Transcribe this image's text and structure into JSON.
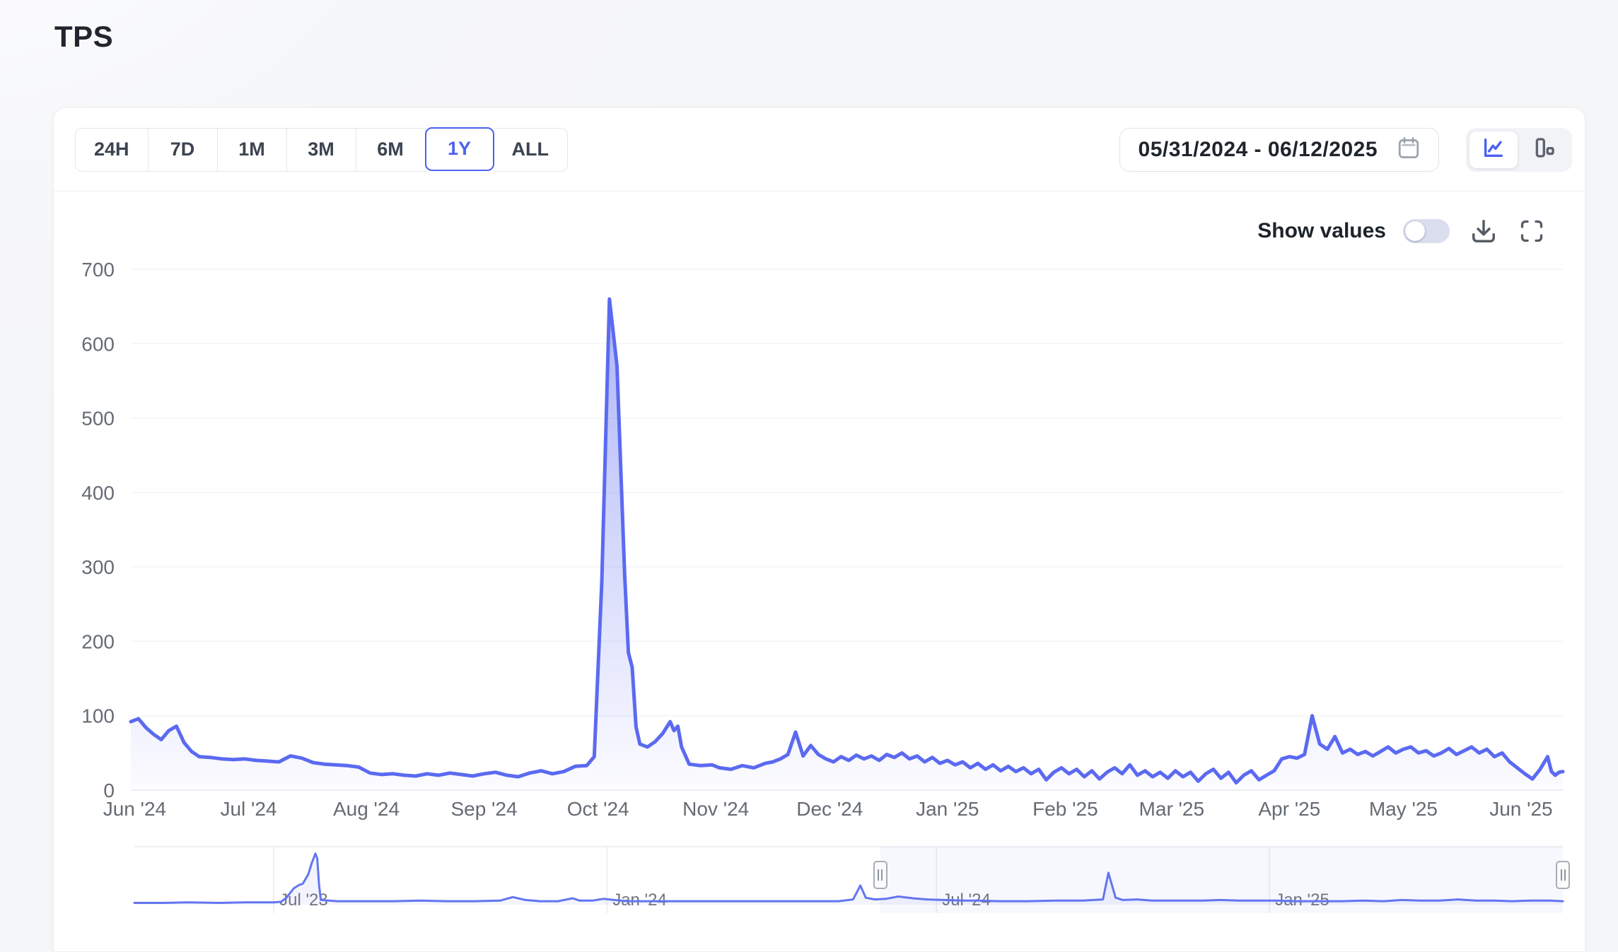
{
  "page": {
    "title": "TPS"
  },
  "toolbar": {
    "ranges": [
      {
        "label": "24H",
        "selected": false
      },
      {
        "label": "7D",
        "selected": false
      },
      {
        "label": "1M",
        "selected": false
      },
      {
        "label": "3M",
        "selected": false
      },
      {
        "label": "6M",
        "selected": false
      },
      {
        "label": "1Y",
        "selected": true
      },
      {
        "label": "ALL",
        "selected": false
      }
    ],
    "date_range": {
      "value": "05/31/2024 - 06/12/2025"
    },
    "chart_type": {
      "selected": "line"
    }
  },
  "chart_header": {
    "show_values_label": "Show values",
    "show_values_on": false
  },
  "colors": {
    "accent": "#4b62f0",
    "line": "#5b6af0",
    "nav_line": "#6375f0",
    "grid": "#f3f4f6",
    "axis": "#e9ebee",
    "area_top": "rgba(91,106,240,0.50)",
    "area_bottom": "rgba(91,106,240,0.02)",
    "nav_fill": "rgba(99,115,240,0.08)",
    "selection_fill": "rgba(93,110,240,0.05)",
    "icon_gray": "#565c66",
    "calendar_gray": "#9aa1ac"
  },
  "chart_data": [
    {
      "type": "area",
      "role": "main",
      "title": "TPS",
      "ylabel": "",
      "xlabel": "",
      "ylim": [
        0,
        700
      ],
      "yticks": [
        0,
        100,
        200,
        300,
        400,
        500,
        600,
        700
      ],
      "grid": "horizontal",
      "legend": "none",
      "xrange": [
        "2024-05-31",
        "2025-06-12"
      ],
      "xticks": [
        {
          "label": "Jun '24",
          "date": "2024-06-01"
        },
        {
          "label": "Jul '24",
          "date": "2024-07-01"
        },
        {
          "label": "Aug '24",
          "date": "2024-08-01"
        },
        {
          "label": "Sep '24",
          "date": "2024-09-01"
        },
        {
          "label": "Oct '24",
          "date": "2024-10-01"
        },
        {
          "label": "Nov '24",
          "date": "2024-11-01"
        },
        {
          "label": "Dec '24",
          "date": "2024-12-01"
        },
        {
          "label": "Jan '25",
          "date": "2025-01-01"
        },
        {
          "label": "Feb '25",
          "date": "2025-02-01"
        },
        {
          "label": "Mar '25",
          "date": "2025-03-01"
        },
        {
          "label": "Apr '25",
          "date": "2025-04-01"
        },
        {
          "label": "May '25",
          "date": "2025-05-01"
        },
        {
          "label": "Jun '25",
          "date": "2025-06-01"
        }
      ],
      "points": [
        [
          "2024-05-31",
          92
        ],
        [
          "2024-06-02",
          96
        ],
        [
          "2024-06-04",
          84
        ],
        [
          "2024-06-06",
          75
        ],
        [
          "2024-06-08",
          68
        ],
        [
          "2024-06-10",
          80
        ],
        [
          "2024-06-12",
          86
        ],
        [
          "2024-06-14",
          64
        ],
        [
          "2024-06-16",
          52
        ],
        [
          "2024-06-18",
          45
        ],
        [
          "2024-06-21",
          44
        ],
        [
          "2024-06-24",
          42
        ],
        [
          "2024-06-27",
          41
        ],
        [
          "2024-06-30",
          42
        ],
        [
          "2024-07-03",
          40
        ],
        [
          "2024-07-06",
          39
        ],
        [
          "2024-07-09",
          38
        ],
        [
          "2024-07-12",
          46
        ],
        [
          "2024-07-15",
          43
        ],
        [
          "2024-07-18",
          37
        ],
        [
          "2024-07-21",
          35
        ],
        [
          "2024-07-24",
          34
        ],
        [
          "2024-07-27",
          33
        ],
        [
          "2024-07-30",
          31
        ],
        [
          "2024-08-02",
          23
        ],
        [
          "2024-08-05",
          21
        ],
        [
          "2024-08-08",
          22
        ],
        [
          "2024-08-11",
          20
        ],
        [
          "2024-08-14",
          19
        ],
        [
          "2024-08-17",
          22
        ],
        [
          "2024-08-20",
          20
        ],
        [
          "2024-08-23",
          23
        ],
        [
          "2024-08-26",
          21
        ],
        [
          "2024-08-29",
          19
        ],
        [
          "2024-09-01",
          22
        ],
        [
          "2024-09-04",
          24
        ],
        [
          "2024-09-07",
          20
        ],
        [
          "2024-09-10",
          18
        ],
        [
          "2024-09-13",
          23
        ],
        [
          "2024-09-16",
          26
        ],
        [
          "2024-09-19",
          22
        ],
        [
          "2024-09-22",
          25
        ],
        [
          "2024-09-25",
          32
        ],
        [
          "2024-09-28",
          33
        ],
        [
          "2024-09-30",
          45
        ],
        [
          "2024-10-02",
          280
        ],
        [
          "2024-10-04",
          660
        ],
        [
          "2024-10-06",
          570
        ],
        [
          "2024-10-08",
          290
        ],
        [
          "2024-10-09",
          185
        ],
        [
          "2024-10-10",
          165
        ],
        [
          "2024-10-11",
          85
        ],
        [
          "2024-10-12",
          62
        ],
        [
          "2024-10-14",
          58
        ],
        [
          "2024-10-16",
          65
        ],
        [
          "2024-10-18",
          76
        ],
        [
          "2024-10-20",
          92
        ],
        [
          "2024-10-21",
          80
        ],
        [
          "2024-10-22",
          86
        ],
        [
          "2024-10-23",
          58
        ],
        [
          "2024-10-25",
          35
        ],
        [
          "2024-10-28",
          33
        ],
        [
          "2024-10-31",
          34
        ],
        [
          "2024-11-02",
          30
        ],
        [
          "2024-11-05",
          28
        ],
        [
          "2024-11-08",
          33
        ],
        [
          "2024-11-11",
          30
        ],
        [
          "2024-11-14",
          36
        ],
        [
          "2024-11-16",
          38
        ],
        [
          "2024-11-18",
          42
        ],
        [
          "2024-11-20",
          48
        ],
        [
          "2024-11-22",
          78
        ],
        [
          "2024-11-24",
          46
        ],
        [
          "2024-11-26",
          60
        ],
        [
          "2024-11-28",
          48
        ],
        [
          "2024-11-30",
          42
        ],
        [
          "2024-12-02",
          38
        ],
        [
          "2024-12-04",
          45
        ],
        [
          "2024-12-06",
          40
        ],
        [
          "2024-12-08",
          47
        ],
        [
          "2024-12-10",
          42
        ],
        [
          "2024-12-12",
          46
        ],
        [
          "2024-12-14",
          40
        ],
        [
          "2024-12-16",
          48
        ],
        [
          "2024-12-18",
          44
        ],
        [
          "2024-12-20",
          50
        ],
        [
          "2024-12-22",
          42
        ],
        [
          "2024-12-24",
          46
        ],
        [
          "2024-12-26",
          38
        ],
        [
          "2024-12-28",
          44
        ],
        [
          "2024-12-30",
          36
        ],
        [
          "2025-01-01",
          40
        ],
        [
          "2025-01-03",
          34
        ],
        [
          "2025-01-05",
          38
        ],
        [
          "2025-01-07",
          30
        ],
        [
          "2025-01-09",
          36
        ],
        [
          "2025-01-11",
          28
        ],
        [
          "2025-01-13",
          34
        ],
        [
          "2025-01-15",
          26
        ],
        [
          "2025-01-17",
          32
        ],
        [
          "2025-01-19",
          25
        ],
        [
          "2025-01-21",
          30
        ],
        [
          "2025-01-23",
          22
        ],
        [
          "2025-01-25",
          28
        ],
        [
          "2025-01-27",
          14
        ],
        [
          "2025-01-29",
          24
        ],
        [
          "2025-01-31",
          30
        ],
        [
          "2025-02-02",
          22
        ],
        [
          "2025-02-04",
          28
        ],
        [
          "2025-02-06",
          18
        ],
        [
          "2025-02-08",
          26
        ],
        [
          "2025-02-10",
          15
        ],
        [
          "2025-02-12",
          24
        ],
        [
          "2025-02-14",
          30
        ],
        [
          "2025-02-16",
          22
        ],
        [
          "2025-02-18",
          34
        ],
        [
          "2025-02-20",
          20
        ],
        [
          "2025-02-22",
          26
        ],
        [
          "2025-02-24",
          18
        ],
        [
          "2025-02-26",
          24
        ],
        [
          "2025-02-28",
          16
        ],
        [
          "2025-03-02",
          26
        ],
        [
          "2025-03-04",
          18
        ],
        [
          "2025-03-06",
          24
        ],
        [
          "2025-03-08",
          12
        ],
        [
          "2025-03-10",
          22
        ],
        [
          "2025-03-12",
          28
        ],
        [
          "2025-03-14",
          16
        ],
        [
          "2025-03-16",
          24
        ],
        [
          "2025-03-18",
          10
        ],
        [
          "2025-03-20",
          20
        ],
        [
          "2025-03-22",
          26
        ],
        [
          "2025-03-24",
          14
        ],
        [
          "2025-03-26",
          20
        ],
        [
          "2025-03-28",
          26
        ],
        [
          "2025-03-30",
          42
        ],
        [
          "2025-04-01",
          45
        ],
        [
          "2025-04-03",
          43
        ],
        [
          "2025-04-05",
          48
        ],
        [
          "2025-04-07",
          100
        ],
        [
          "2025-04-09",
          62
        ],
        [
          "2025-04-11",
          55
        ],
        [
          "2025-04-13",
          72
        ],
        [
          "2025-04-15",
          50
        ],
        [
          "2025-04-17",
          55
        ],
        [
          "2025-04-19",
          48
        ],
        [
          "2025-04-21",
          52
        ],
        [
          "2025-04-23",
          46
        ],
        [
          "2025-04-25",
          52
        ],
        [
          "2025-04-27",
          58
        ],
        [
          "2025-04-29",
          50
        ],
        [
          "2025-05-01",
          55
        ],
        [
          "2025-05-03",
          58
        ],
        [
          "2025-05-05",
          50
        ],
        [
          "2025-05-07",
          53
        ],
        [
          "2025-05-09",
          46
        ],
        [
          "2025-05-11",
          50
        ],
        [
          "2025-05-13",
          56
        ],
        [
          "2025-05-15",
          48
        ],
        [
          "2025-05-17",
          53
        ],
        [
          "2025-05-19",
          58
        ],
        [
          "2025-05-21",
          50
        ],
        [
          "2025-05-23",
          55
        ],
        [
          "2025-05-25",
          45
        ],
        [
          "2025-05-27",
          50
        ],
        [
          "2025-05-29",
          38
        ],
        [
          "2025-05-31",
          30
        ],
        [
          "2025-06-02",
          22
        ],
        [
          "2025-06-04",
          15
        ],
        [
          "2025-06-06",
          28
        ],
        [
          "2025-06-08",
          45
        ],
        [
          "2025-06-09",
          25
        ],
        [
          "2025-06-10",
          20
        ],
        [
          "2025-06-11",
          24
        ],
        [
          "2025-06-12",
          25
        ]
      ]
    },
    {
      "type": "area",
      "role": "navigator",
      "ylim": [
        0,
        100
      ],
      "xrange": [
        "2023-04-15",
        "2025-06-12"
      ],
      "selection": [
        "2024-05-31",
        "2025-06-12"
      ],
      "xticks": [
        {
          "label": "Jul '23",
          "date": "2023-07-01"
        },
        {
          "label": "Jan '24",
          "date": "2024-01-01"
        },
        {
          "label": "Jul '24",
          "date": "2024-07-01"
        },
        {
          "label": "Jan '25",
          "date": "2025-01-01"
        }
      ],
      "points": [
        [
          "2023-04-15",
          3
        ],
        [
          "2023-05-01",
          3
        ],
        [
          "2023-05-15",
          4
        ],
        [
          "2023-06-01",
          3
        ],
        [
          "2023-06-15",
          4
        ],
        [
          "2023-07-01",
          4
        ],
        [
          "2023-07-05",
          5
        ],
        [
          "2023-07-08",
          12
        ],
        [
          "2023-07-12",
          28
        ],
        [
          "2023-07-15",
          34
        ],
        [
          "2023-07-17",
          36
        ],
        [
          "2023-07-20",
          52
        ],
        [
          "2023-07-22",
          72
        ],
        [
          "2023-07-24",
          88
        ],
        [
          "2023-07-25",
          80
        ],
        [
          "2023-07-26",
          35
        ],
        [
          "2023-07-27",
          8
        ],
        [
          "2023-08-05",
          6
        ],
        [
          "2023-08-20",
          6
        ],
        [
          "2023-09-05",
          6
        ],
        [
          "2023-09-20",
          7
        ],
        [
          "2023-10-05",
          6
        ],
        [
          "2023-10-20",
          6
        ],
        [
          "2023-11-03",
          7
        ],
        [
          "2023-11-10",
          13
        ],
        [
          "2023-11-17",
          8
        ],
        [
          "2023-11-25",
          6
        ],
        [
          "2023-12-05",
          6
        ],
        [
          "2023-12-13",
          11
        ],
        [
          "2023-12-17",
          7
        ],
        [
          "2023-12-24",
          7
        ],
        [
          "2023-12-30",
          10
        ],
        [
          "2024-01-05",
          8
        ],
        [
          "2024-01-12",
          6
        ],
        [
          "2024-01-25",
          6
        ],
        [
          "2024-02-10",
          6
        ],
        [
          "2024-02-25",
          6
        ],
        [
          "2024-03-10",
          6
        ],
        [
          "2024-03-25",
          6
        ],
        [
          "2024-04-10",
          6
        ],
        [
          "2024-04-25",
          6
        ],
        [
          "2024-05-08",
          6
        ],
        [
          "2024-05-16",
          9
        ],
        [
          "2024-05-20",
          33
        ],
        [
          "2024-05-23",
          12
        ],
        [
          "2024-05-28",
          9
        ],
        [
          "2024-06-03",
          10
        ],
        [
          "2024-06-10",
          14
        ],
        [
          "2024-06-18",
          11
        ],
        [
          "2024-06-26",
          9
        ],
        [
          "2024-07-05",
          8
        ],
        [
          "2024-07-15",
          7
        ],
        [
          "2024-07-25",
          7
        ],
        [
          "2024-08-05",
          6
        ],
        [
          "2024-08-20",
          6
        ],
        [
          "2024-09-05",
          7
        ],
        [
          "2024-09-20",
          7
        ],
        [
          "2024-10-01",
          9
        ],
        [
          "2024-10-04",
          55
        ],
        [
          "2024-10-08",
          12
        ],
        [
          "2024-10-12",
          8
        ],
        [
          "2024-10-20",
          9
        ],
        [
          "2024-10-28",
          7
        ],
        [
          "2024-11-10",
          7
        ],
        [
          "2024-11-25",
          7
        ],
        [
          "2024-12-05",
          8
        ],
        [
          "2024-12-15",
          7
        ],
        [
          "2024-12-25",
          7
        ],
        [
          "2025-01-05",
          7
        ],
        [
          "2025-01-15",
          6
        ],
        [
          "2025-01-28",
          6
        ],
        [
          "2025-02-10",
          6
        ],
        [
          "2025-02-22",
          7
        ],
        [
          "2025-03-05",
          6
        ],
        [
          "2025-03-15",
          8
        ],
        [
          "2025-03-25",
          7
        ],
        [
          "2025-04-05",
          7
        ],
        [
          "2025-04-15",
          9
        ],
        [
          "2025-04-25",
          7
        ],
        [
          "2025-05-05",
          7
        ],
        [
          "2025-05-15",
          6
        ],
        [
          "2025-05-25",
          7
        ],
        [
          "2025-06-05",
          7
        ],
        [
          "2025-06-12",
          6
        ]
      ]
    }
  ]
}
